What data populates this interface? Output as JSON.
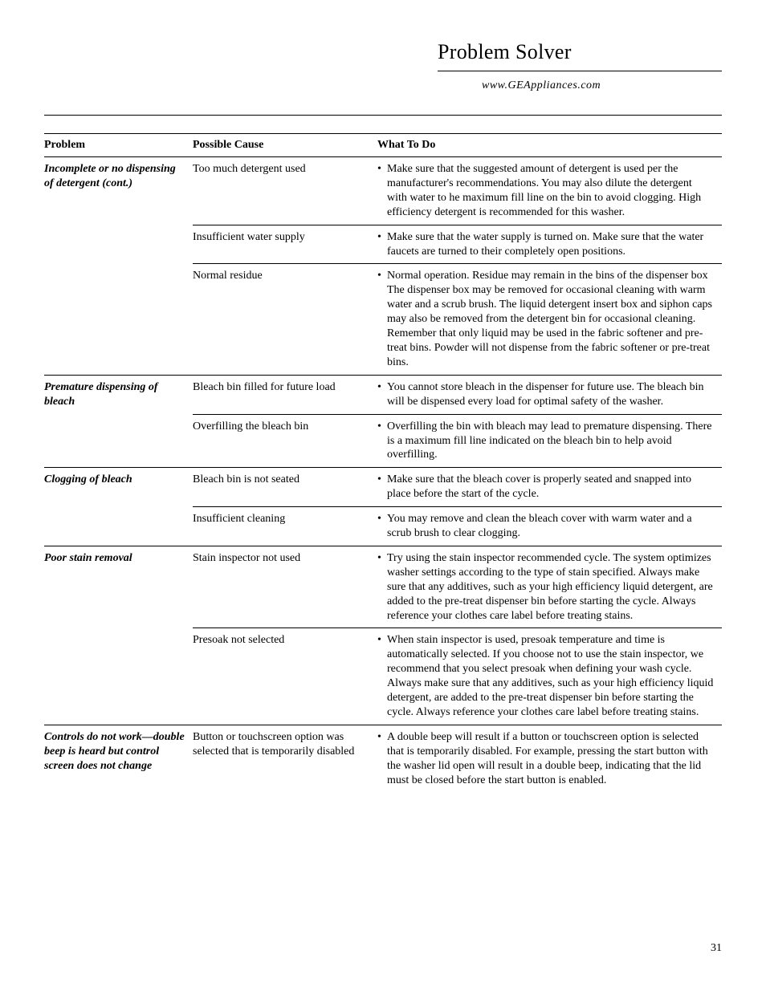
{
  "header": {
    "title": "Problem Solver",
    "url": "www.GEAppliances.com"
  },
  "columns": {
    "problem": "Problem",
    "cause": "Possible Cause",
    "todo": "What To Do"
  },
  "rows": [
    {
      "problem": "Incomplete or no dispensing of detergent (cont.)",
      "cause": "Too much detergent used",
      "todo": "Make sure that the suggested amount of detergent is used per the manufacturer's recommendations. You may also dilute the detergent with water to he maximum fill line on the bin to avoid clogging. High efficiency detergent is recommended for this washer.",
      "newProblem": true
    },
    {
      "problem": "",
      "cause": "Insufficient water supply",
      "todo": "Make sure that the water supply is turned on. Make sure that the water faucets are turned to their completely open positions.",
      "newProblem": false
    },
    {
      "problem": "",
      "cause": "Normal residue",
      "todo": "Normal operation. Residue may remain in the bins of the dispenser box The dispenser box may be removed for occasional cleaning with warm water and a scrub brush. The liquid detergent insert box and siphon caps may also be removed from the detergent bin for occasional cleaning. Remember that only liquid may be used in the fabric softener and pre-treat bins. Powder will not dispense from the fabric softener or pre-treat bins.",
      "newProblem": false
    },
    {
      "problem": "Premature dispensing of bleach",
      "cause": "Bleach bin filled for future load",
      "todo": "You cannot store bleach in the dispenser for future use. The bleach bin will be dispensed every load for optimal safety of the washer.",
      "newProblem": true
    },
    {
      "problem": "",
      "cause": "Overfilling the bleach bin",
      "todo": "Overfilling the bin with bleach may lead to premature dispensing. There is a maximum fill line indicated on the bleach bin to help avoid overfilling.",
      "newProblem": false
    },
    {
      "problem": "Clogging of bleach",
      "cause": "Bleach bin is not seated",
      "todo": "Make sure that the bleach cover is properly seated and snapped into place before the start of the cycle.",
      "newProblem": true
    },
    {
      "problem": "",
      "cause": "Insufficient cleaning",
      "todo": "You may remove and clean the bleach cover with warm water and a scrub brush to clear clogging.",
      "newProblem": false
    },
    {
      "problem": "Poor stain removal",
      "cause": "Stain inspector not used",
      "todo": "Try using the stain inspector recommended cycle. The system optimizes washer settings according to the type of stain specified. Always make sure that any additives, such as your high efficiency liquid detergent, are added to the pre-treat dispenser bin before starting the cycle. Always reference your clothes care label before treating stains.",
      "newProblem": true
    },
    {
      "problem": "",
      "cause": "Presoak not selected",
      "todo": "When stain inspector is used, presoak temperature and time is automatically selected. If you choose not to use the stain inspector, we recommend that you select presoak when defining your wash cycle. Always make sure that any additives, such as your high efficiency liquid detergent, are added to the pre-treat dispenser bin before starting the cycle. Always reference your clothes care label before treating stains.",
      "newProblem": false
    },
    {
      "problem": "Controls do not work—double beep is heard but control screen does not change",
      "cause": "Button or touchscreen option was selected that is temporarily disabled",
      "todo": "A double beep will result if a button or touchscreen option is selected that is temporarily disabled. For example, pressing the start button with the washer lid open will result in a double beep, indicating that the lid must be closed before the start button is enabled.",
      "newProblem": true
    }
  ],
  "pageNumber": "31"
}
